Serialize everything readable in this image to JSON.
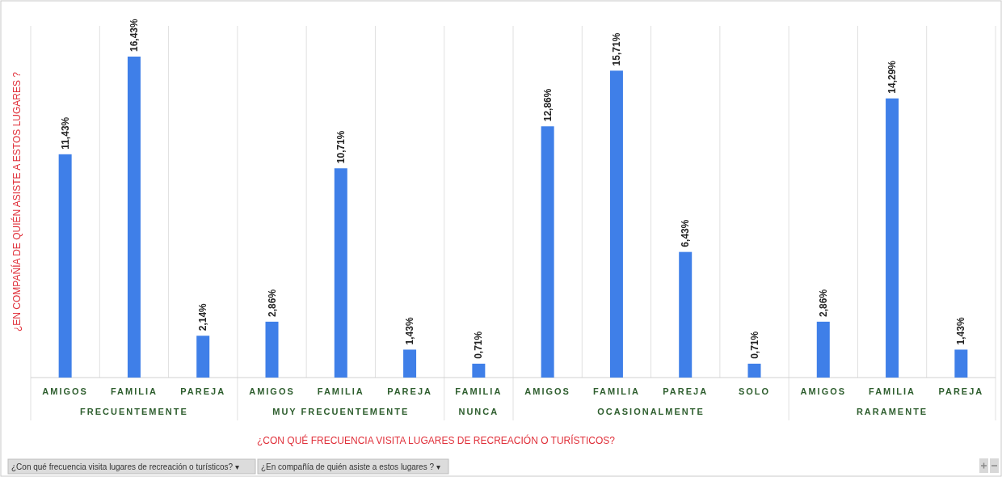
{
  "chart_data": {
    "type": "bar",
    "xlabel": "¿CON QUÉ FRECUENCIA VISITA  LUGARES DE RECREACIÓN O TURÍSTICOS?",
    "ylabel": "¿EN COMPAÑÍA  DE QUIÉN ASISTE A ESTOS LUGARES ?",
    "categories": [
      "AMIGOS",
      "FAMILIA",
      "PAREJA",
      "AMIGOS",
      "FAMILIA",
      "PAREJA",
      "FAMILIA",
      "AMIGOS",
      "FAMILIA",
      "PAREJA",
      "SOLO",
      "AMIGOS",
      "FAMILIA",
      "PAREJA"
    ],
    "values": [
      11.43,
      16.43,
      2.14,
      2.86,
      10.71,
      1.43,
      0.71,
      12.86,
      15.71,
      6.43,
      0.71,
      2.86,
      14.29,
      1.43
    ],
    "value_labels": [
      "11,43%",
      "16,43%",
      "2,14%",
      "2,86%",
      "10,71%",
      "1,43%",
      "0,71%",
      "12,86%",
      "15,71%",
      "6,43%",
      "0,71%",
      "2,86%",
      "14,29%",
      "1,43%"
    ],
    "color": "#3f7fe8",
    "annotations": [
      "FRECUENTEMENTE",
      "MUY FRECUENTEMENTE",
      "NUNCA",
      "OCASIONALMENTE",
      "RARAMENTE",
      "¿Con qué frecuencia visita lugares de recreación o turísticos? ▾",
      "¿En compañía  de quién asiste a estos lugares ? ▾"
    ]
  }
}
